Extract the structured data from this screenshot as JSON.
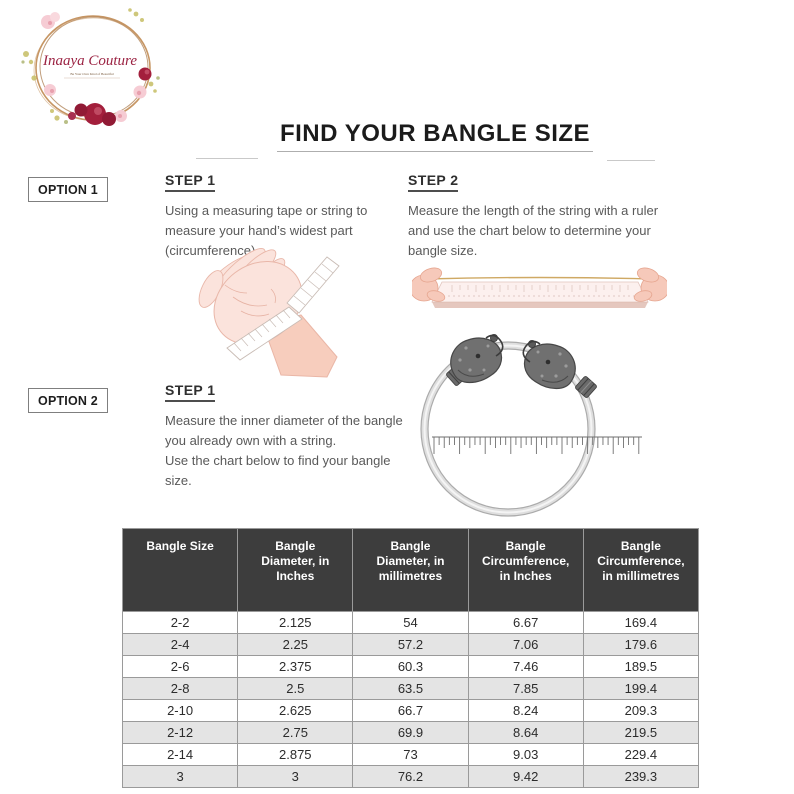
{
  "brand": {
    "name": "Inaaya Couture",
    "tagline": "Be Your Own Kind of Beautiful"
  },
  "page": {
    "title": "FIND YOUR BANGLE SIZE"
  },
  "options": {
    "option1": {
      "label": "OPTION 1",
      "step1": {
        "heading": "STEP 1",
        "text": "Using a measuring tape or string to\nmeasure your hand’s widest part\n(circumference)"
      },
      "step2": {
        "heading": "STEP 2",
        "text": "Measure the length of the string with a ruler\nand use the chart below to determine your\nbangle size."
      }
    },
    "option2": {
      "label": "OPTION 2",
      "step1": {
        "heading": "STEP 1",
        "text": "Measure the inner diameter of the bangle\nyou already own with a string.\nUse the chart below to find your bangle\nsize."
      }
    }
  },
  "images": {
    "logo": "floral-wreath-logo",
    "hand": "hand-with-measuring-tape-illustration",
    "string_ruler": "hands-stretching-string-over-ruler",
    "bangle": "silver-bangle-over-ruler-scale"
  },
  "table": {
    "headers": [
      "Bangle Size",
      "Bangle\nDiameter, in\nInches",
      "Bangle\nDiameter, in\nmillimetres",
      "Bangle\nCircumference,\nin Inches",
      "Bangle\nCircumference,\nin millimetres"
    ],
    "rows": [
      [
        "2-2",
        "2.125",
        "54",
        "6.67",
        "169.4"
      ],
      [
        "2-4",
        "2.25",
        "57.2",
        "7.06",
        "179.6"
      ],
      [
        "2-6",
        "2.375",
        "60.3",
        "7.46",
        "189.5"
      ],
      [
        "2-8",
        "2.5",
        "63.5",
        "7.85",
        "199.4"
      ],
      [
        "2-10",
        "2.625",
        "66.7",
        "8.24",
        "209.3"
      ],
      [
        "2-12",
        "2.75",
        "69.9",
        "8.64",
        "219.5"
      ],
      [
        "2-14",
        "2.875",
        "73",
        "9.03",
        "229.4"
      ],
      [
        "3",
        "3",
        "76.2",
        "9.42",
        "239.3"
      ]
    ]
  },
  "colors": {
    "header_bg": "#3d3d3d",
    "row_stripe": "#e4e4e4",
    "brand_maroon": "#9b2242",
    "table_border": "#9a9a9a"
  }
}
